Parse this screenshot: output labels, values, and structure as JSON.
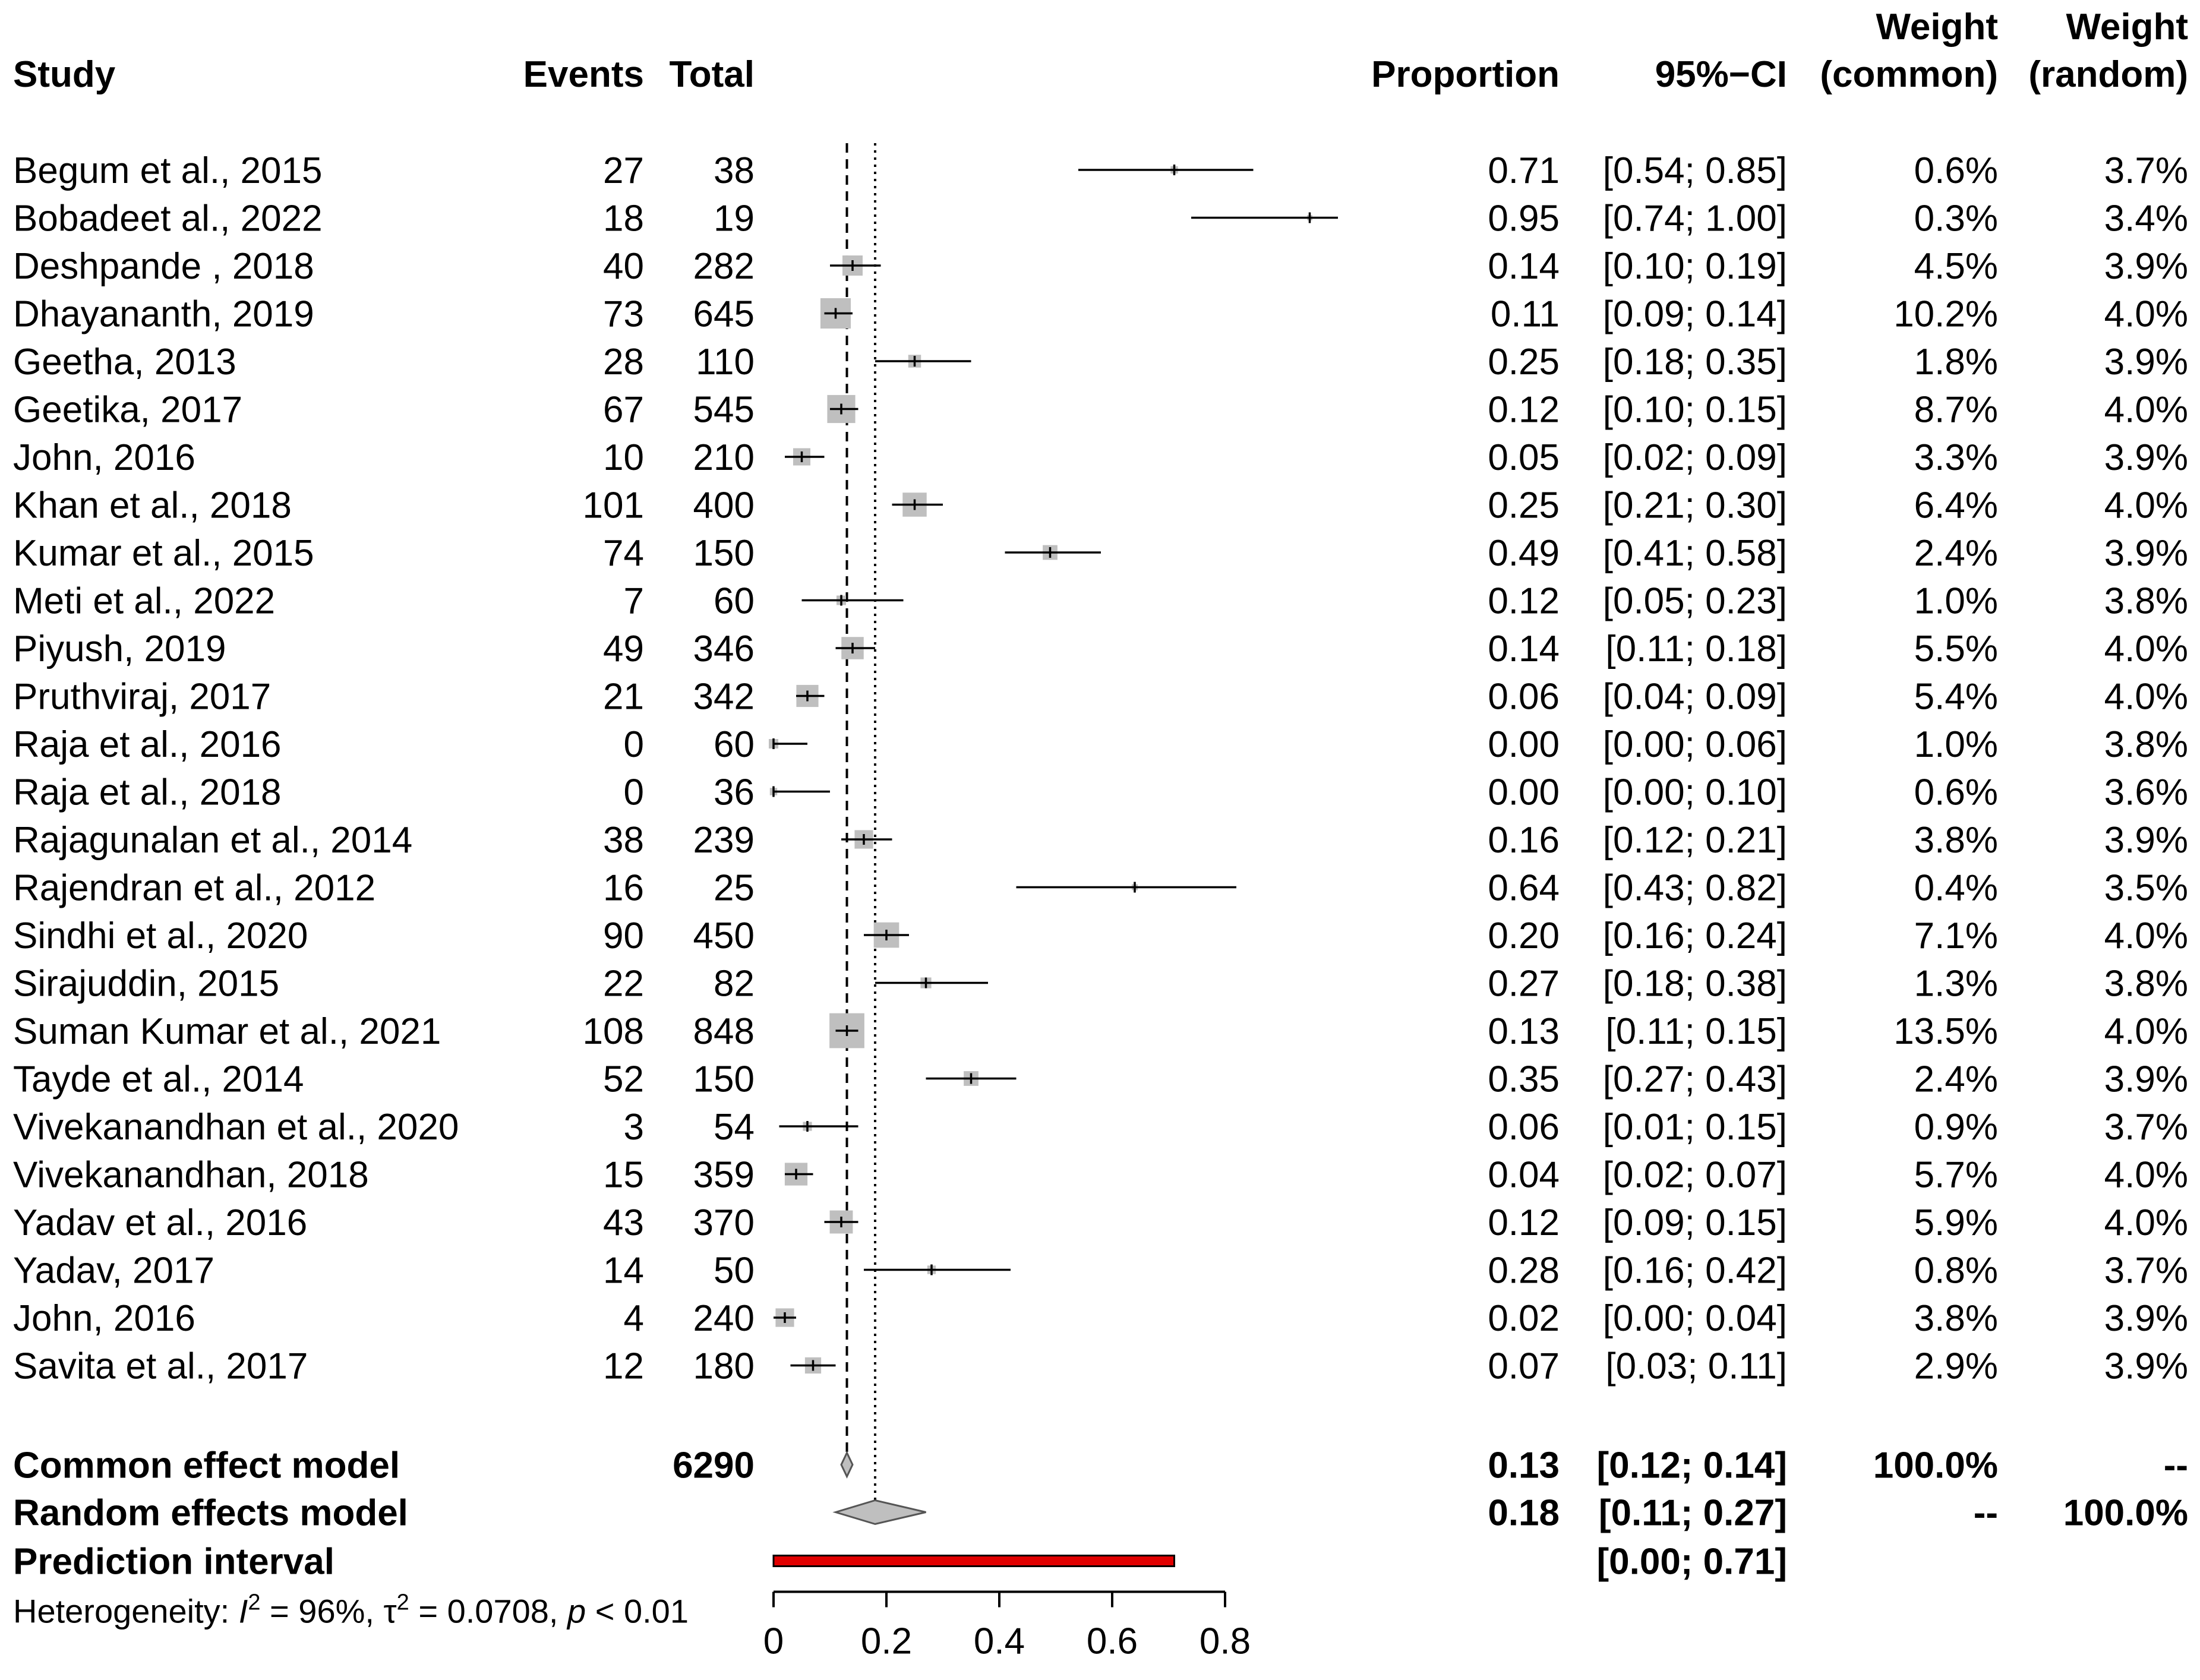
{
  "headers": {
    "study": "Study",
    "events": "Events",
    "total": "Total",
    "proportion": "Proportion",
    "ci": "95%−CI",
    "weight_common_top": "Weight",
    "weight_common_bottom": "(common)",
    "weight_random_top": "Weight",
    "weight_random_bottom": "(random)"
  },
  "chart_data": {
    "type": "forest",
    "measure": "Proportion",
    "studies": [
      {
        "study": "Begum et al., 2015",
        "events": "27",
        "total": "38",
        "prop_label": "0.71",
        "ci_label": "[0.54; 0.85]",
        "w_common": "0.6%",
        "w_random": "3.7%",
        "est": 0.71,
        "lower": 0.54,
        "upper": 0.85,
        "w": 0.6
      },
      {
        "study": "Bobadeet al., 2022",
        "events": "18",
        "total": "19",
        "prop_label": "0.95",
        "ci_label": "[0.74; 1.00]",
        "w_common": "0.3%",
        "w_random": "3.4%",
        "est": 0.95,
        "lower": 0.74,
        "upper": 1.0,
        "w": 0.3
      },
      {
        "study": "Deshpande , 2018",
        "events": "40",
        "total": "282",
        "prop_label": "0.14",
        "ci_label": "[0.10; 0.19]",
        "w_common": "4.5%",
        "w_random": "3.9%",
        "est": 0.14,
        "lower": 0.1,
        "upper": 0.19,
        "w": 4.5
      },
      {
        "study": "Dhayananth, 2019",
        "events": "73",
        "total": "645",
        "prop_label": "0.11",
        "ci_label": "[0.09; 0.14]",
        "w_common": "10.2%",
        "w_random": "4.0%",
        "est": 0.11,
        "lower": 0.09,
        "upper": 0.14,
        "w": 10.2
      },
      {
        "study": "Geetha, 2013",
        "events": "28",
        "total": "110",
        "prop_label": "0.25",
        "ci_label": "[0.18; 0.35]",
        "w_common": "1.8%",
        "w_random": "3.9%",
        "est": 0.25,
        "lower": 0.18,
        "upper": 0.35,
        "w": 1.8
      },
      {
        "study": "Geetika, 2017",
        "events": "67",
        "total": "545",
        "prop_label": "0.12",
        "ci_label": "[0.10; 0.15]",
        "w_common": "8.7%",
        "w_random": "4.0%",
        "est": 0.12,
        "lower": 0.1,
        "upper": 0.15,
        "w": 8.7
      },
      {
        "study": "John, 2016",
        "events": "10",
        "total": "210",
        "prop_label": "0.05",
        "ci_label": "[0.02; 0.09]",
        "w_common": "3.3%",
        "w_random": "3.9%",
        "est": 0.05,
        "lower": 0.02,
        "upper": 0.09,
        "w": 3.3
      },
      {
        "study": "Khan et al., 2018",
        "events": "101",
        "total": "400",
        "prop_label": "0.25",
        "ci_label": "[0.21; 0.30]",
        "w_common": "6.4%",
        "w_random": "4.0%",
        "est": 0.25,
        "lower": 0.21,
        "upper": 0.3,
        "w": 6.4
      },
      {
        "study": "Kumar et al., 2015",
        "events": "74",
        "total": "150",
        "prop_label": "0.49",
        "ci_label": "[0.41; 0.58]",
        "w_common": "2.4%",
        "w_random": "3.9%",
        "est": 0.49,
        "lower": 0.41,
        "upper": 0.58,
        "w": 2.4
      },
      {
        "study": "Meti et al., 2022",
        "events": "7",
        "total": "60",
        "prop_label": "0.12",
        "ci_label": "[0.05; 0.23]",
        "w_common": "1.0%",
        "w_random": "3.8%",
        "est": 0.12,
        "lower": 0.05,
        "upper": 0.23,
        "w": 1.0
      },
      {
        "study": "Piyush, 2019",
        "events": "49",
        "total": "346",
        "prop_label": "0.14",
        "ci_label": "[0.11; 0.18]",
        "w_common": "5.5%",
        "w_random": "4.0%",
        "est": 0.14,
        "lower": 0.11,
        "upper": 0.18,
        "w": 5.5
      },
      {
        "study": "Pruthviraj, 2017",
        "events": "21",
        "total": "342",
        "prop_label": "0.06",
        "ci_label": "[0.04; 0.09]",
        "w_common": "5.4%",
        "w_random": "4.0%",
        "est": 0.06,
        "lower": 0.04,
        "upper": 0.09,
        "w": 5.4
      },
      {
        "study": "Raja et al., 2016",
        "events": "0",
        "total": "60",
        "prop_label": "0.00",
        "ci_label": "[0.00; 0.06]",
        "w_common": "1.0%",
        "w_random": "3.8%",
        "est": 0.0,
        "lower": 0.0,
        "upper": 0.06,
        "w": 1.0
      },
      {
        "study": "Raja et al., 2018",
        "events": "0",
        "total": "36",
        "prop_label": "0.00",
        "ci_label": "[0.00; 0.10]",
        "w_common": "0.6%",
        "w_random": "3.6%",
        "est": 0.0,
        "lower": 0.0,
        "upper": 0.1,
        "w": 0.6
      },
      {
        "study": "Rajagunalan et al., 2014",
        "events": "38",
        "total": "239",
        "prop_label": "0.16",
        "ci_label": "[0.12; 0.21]",
        "w_common": "3.8%",
        "w_random": "3.9%",
        "est": 0.16,
        "lower": 0.12,
        "upper": 0.21,
        "w": 3.8
      },
      {
        "study": "Rajendran et al., 2012",
        "events": "16",
        "total": "25",
        "prop_label": "0.64",
        "ci_label": "[0.43; 0.82]",
        "w_common": "0.4%",
        "w_random": "3.5%",
        "est": 0.64,
        "lower": 0.43,
        "upper": 0.82,
        "w": 0.4
      },
      {
        "study": "Sindhi et al., 2020",
        "events": "90",
        "total": "450",
        "prop_label": "0.20",
        "ci_label": "[0.16; 0.24]",
        "w_common": "7.1%",
        "w_random": "4.0%",
        "est": 0.2,
        "lower": 0.16,
        "upper": 0.24,
        "w": 7.1
      },
      {
        "study": "Sirajuddin, 2015",
        "events": "22",
        "total": "82",
        "prop_label": "0.27",
        "ci_label": "[0.18; 0.38]",
        "w_common": "1.3%",
        "w_random": "3.8%",
        "est": 0.27,
        "lower": 0.18,
        "upper": 0.38,
        "w": 1.3
      },
      {
        "study": "Suman Kumar et al., 2021",
        "events": "108",
        "total": "848",
        "prop_label": "0.13",
        "ci_label": "[0.11; 0.15]",
        "w_common": "13.5%",
        "w_random": "4.0%",
        "est": 0.13,
        "lower": 0.11,
        "upper": 0.15,
        "w": 13.5
      },
      {
        "study": "Tayde et al., 2014",
        "events": "52",
        "total": "150",
        "prop_label": "0.35",
        "ci_label": "[0.27; 0.43]",
        "w_common": "2.4%",
        "w_random": "3.9%",
        "est": 0.35,
        "lower": 0.27,
        "upper": 0.43,
        "w": 2.4
      },
      {
        "study": "Vivekanandhan et al., 2020",
        "events": "3",
        "total": "54",
        "prop_label": "0.06",
        "ci_label": "[0.01; 0.15]",
        "w_common": "0.9%",
        "w_random": "3.7%",
        "est": 0.06,
        "lower": 0.01,
        "upper": 0.15,
        "w": 0.9
      },
      {
        "study": "Vivekanandhan, 2018",
        "events": "15",
        "total": "359",
        "prop_label": "0.04",
        "ci_label": "[0.02; 0.07]",
        "w_common": "5.7%",
        "w_random": "4.0%",
        "est": 0.04,
        "lower": 0.02,
        "upper": 0.07,
        "w": 5.7
      },
      {
        "study": "Yadav et al., 2016",
        "events": "43",
        "total": "370",
        "prop_label": "0.12",
        "ci_label": "[0.09; 0.15]",
        "w_common": "5.9%",
        "w_random": "4.0%",
        "est": 0.12,
        "lower": 0.09,
        "upper": 0.15,
        "w": 5.9
      },
      {
        "study": "Yadav, 2017",
        "events": "14",
        "total": "50",
        "prop_label": "0.28",
        "ci_label": "[0.16; 0.42]",
        "w_common": "0.8%",
        "w_random": "3.7%",
        "est": 0.28,
        "lower": 0.16,
        "upper": 0.42,
        "w": 0.8
      },
      {
        "study": "John, 2016",
        "events": "4",
        "total": "240",
        "prop_label": "0.02",
        "ci_label": "[0.00; 0.04]",
        "w_common": "3.8%",
        "w_random": "3.9%",
        "est": 0.02,
        "lower": 0.0,
        "upper": 0.04,
        "w": 3.8
      },
      {
        "study": "Savita et al., 2017",
        "events": "12",
        "total": "180",
        "prop_label": "0.07",
        "ci_label": "[0.03; 0.11]",
        "w_common": "2.9%",
        "w_random": "3.9%",
        "est": 0.07,
        "lower": 0.03,
        "upper": 0.11,
        "w": 2.9
      }
    ],
    "common": {
      "label": "Common effect model",
      "total": "6290",
      "prop_label": "0.13",
      "ci_label": "[0.12; 0.14]",
      "w_common": "100.0%",
      "w_random": "--",
      "est": 0.13,
      "lower": 0.12,
      "upper": 0.14
    },
    "random": {
      "label": "Random effects model",
      "prop_label": "0.18",
      "ci_label": "[0.11; 0.27]",
      "w_common": "--",
      "w_random": "100.0%",
      "est": 0.18,
      "lower": 0.11,
      "upper": 0.27
    },
    "prediction": {
      "label": "Prediction interval",
      "ci_label": "[0.00; 0.71]",
      "lower": 0.0,
      "upper": 0.71
    },
    "heterogeneity": {
      "prefix": "Heterogeneity: ",
      "i2_symbol": "I",
      "i2_sup": "2",
      "i2_value": " = 96%, ",
      "tau_symbol": "τ",
      "tau_sup": "2",
      "tau_value": " = 0.0708, ",
      "p_symbol": "p",
      "p_value": " < 0.01"
    },
    "axis": {
      "xlim": [
        0,
        0.8
      ],
      "ticks": [
        0,
        0.2,
        0.4,
        0.6,
        0.8
      ],
      "tick_labels": [
        "0",
        "0.2",
        "0.4",
        "0.6",
        "0.8"
      ]
    },
    "colors": {
      "box": "#bfbfbf",
      "diamond": "#bfbfbf",
      "prediction": "#e00000",
      "line": "#000000"
    }
  }
}
